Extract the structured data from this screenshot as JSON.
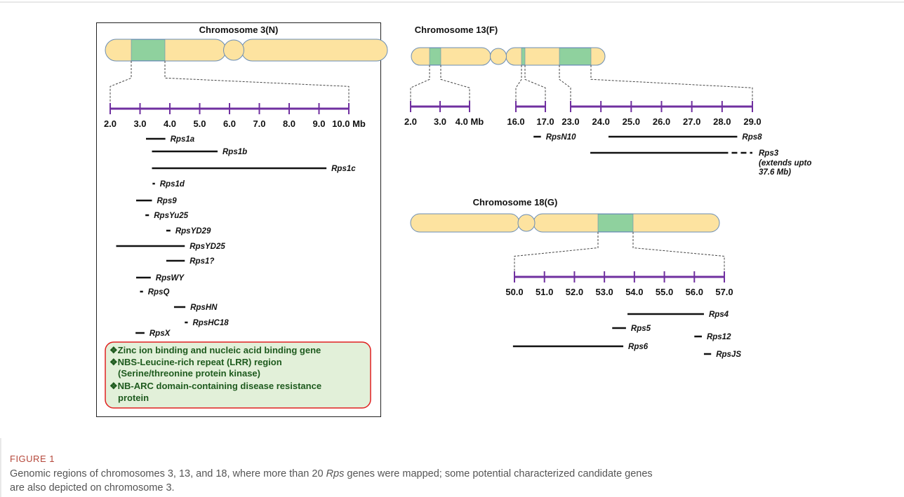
{
  "chromosomes": [
    {
      "title": "Chromosome 3(N)",
      "scales": [
        {
          "ticks": [
            {
              "value": 2,
              "label": "2.0"
            },
            {
              "value": 3,
              "label": "3.0"
            },
            {
              "value": 4,
              "label": "4.0"
            },
            {
              "value": 5,
              "label": "5.0"
            },
            {
              "value": 6,
              "label": "6.0"
            },
            {
              "value": 7,
              "label": "7.0"
            },
            {
              "value": 8,
              "label": "8.0"
            },
            {
              "value": 9,
              "label": "9.0"
            },
            {
              "value": 10,
              "label": "10.0 Mb"
            }
          ],
          "genes": [
            {
              "name": "Rps1a",
              "start": 3.2,
              "end": 3.85
            },
            {
              "name": "Rps1b",
              "start": 3.4,
              "end": 5.6
            },
            {
              "name": "Rps1c",
              "start": 3.4,
              "end": 9.25
            },
            {
              "name": "Rps1d",
              "start": 3.42,
              "end": 3.5
            },
            {
              "name": "Rps9",
              "start": 2.87,
              "end": 3.4
            },
            {
              "name": "RpsYu25",
              "start": 3.18,
              "end": 3.3
            },
            {
              "name": "RpsYD29",
              "start": 3.88,
              "end": 4.02
            },
            {
              "name": "RpsYD25",
              "start": 2.2,
              "end": 4.5,
              "color": "#2e6b1f"
            },
            {
              "name": "Rps1?",
              "start": 3.88,
              "end": 4.5
            },
            {
              "name": "RpsWY",
              "start": 2.87,
              "end": 3.36
            },
            {
              "name": "RpsQ",
              "start": 3.0,
              "end": 3.1,
              "color": "#2e6b1f"
            },
            {
              "name": "RpsHN",
              "start": 4.14,
              "end": 4.52,
              "color": "#2e6b1f"
            },
            {
              "name": "RpsHC18",
              "start": 4.5,
              "end": 4.6
            },
            {
              "name": "RpsX",
              "start": 2.85,
              "end": 3.15
            }
          ]
        }
      ]
    },
    {
      "title": "Chromosome 13(F)",
      "scales": [
        {
          "ticks": [
            {
              "value": 2,
              "label": "2.0"
            },
            {
              "value": 3,
              "label": "3.0"
            },
            {
              "value": 4,
              "label": "4.0 Mb"
            }
          ],
          "genes": []
        },
        {
          "ticks": [
            {
              "value": 16,
              "label": "16.0"
            },
            {
              "value": 17,
              "label": "17.0"
            }
          ],
          "genes": [
            {
              "name": "RpsN10",
              "start": 16.6,
              "end": 16.85
            }
          ]
        },
        {
          "ticks": [
            {
              "value": 23,
              "label": "23.0"
            },
            {
              "value": 24,
              "label": "24.0"
            },
            {
              "value": 25,
              "label": "25.0"
            },
            {
              "value": 26,
              "label": "26.0"
            },
            {
              "value": 27,
              "label": "27.0"
            },
            {
              "value": 28,
              "label": "28.0"
            },
            {
              "value": 29,
              "label": "29.0"
            }
          ],
          "genes": [
            {
              "name": "Rps8",
              "start": 24.25,
              "end": 28.5
            },
            {
              "name": "Rps3",
              "start": 23.65,
              "end": 28.2,
              "notes": [
                "(extends upto",
                "37.6 Mb)"
              ]
            }
          ]
        }
      ]
    },
    {
      "title": "Chromosome 18(G)",
      "scales": [
        {
          "ticks": [
            {
              "value": 50,
              "label": "50.0"
            },
            {
              "value": 51,
              "label": "51.0"
            },
            {
              "value": 52,
              "label": "52.0"
            },
            {
              "value": 53,
              "label": "53.0"
            },
            {
              "value": 54,
              "label": "54.0"
            },
            {
              "value": 55,
              "label": "55.0"
            },
            {
              "value": 56,
              "label": "56.0"
            },
            {
              "value": 57,
              "label": "57.0"
            }
          ],
          "genes": [
            {
              "name": "Rps4",
              "start": 53.77,
              "end": 56.32
            },
            {
              "name": "Rps5",
              "start": 53.26,
              "end": 53.72
            },
            {
              "name": "Rps12",
              "start": 56.0,
              "end": 56.25
            },
            {
              "name": "Rps6",
              "start": 49.95,
              "end": 53.63
            },
            {
              "name": "RpsJS",
              "start": 56.32,
              "end": 56.56
            }
          ]
        }
      ]
    }
  ],
  "notes": [
    "❖Zinc ion binding and nucleic acid binding gene",
    "❖NBS-Leucine-rich repeat (LRR) region",
    "(Serine/threonine protein kinase)",
    "❖NB-ARC domain-containing disease resistance",
    "protein"
  ],
  "figure": {
    "label": "FIGURE 1",
    "caption_line1": [
      "Genomic regions of chromosomes 3, 13, and 18, where more than 20 ",
      "Rps",
      " genes were mapped; some potential characterized candidate genes"
    ],
    "caption_line2": "are also depicted on chromosome 3."
  }
}
